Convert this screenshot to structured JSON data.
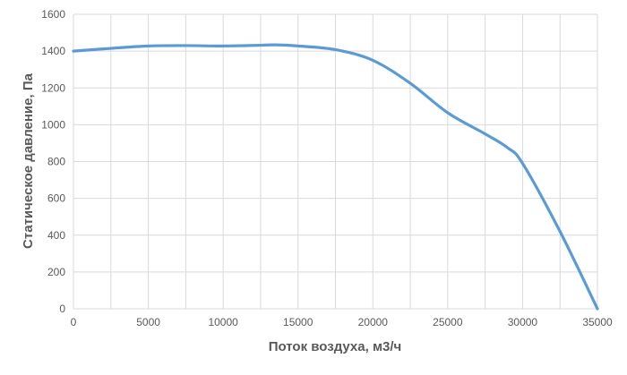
{
  "chart_data": {
    "type": "line",
    "title": "",
    "xlabel": "Поток воздуха, м3/ч",
    "ylabel": "Статическое давление, Па",
    "xlim": [
      0,
      35000
    ],
    "ylim": [
      0,
      1600
    ],
    "xticks": [
      "0",
      "5000",
      "10000",
      "15000",
      "20000",
      "25000",
      "30000",
      "35000"
    ],
    "yticks": [
      "0",
      "200",
      "400",
      "600",
      "800",
      "1000",
      "1200",
      "1400",
      "1600"
    ],
    "grid": true,
    "legend": "none",
    "series": [
      {
        "color": "#5B9BD5",
        "smooth": true,
        "x": [
          0,
          2500,
          5000,
          7500,
          10000,
          12500,
          13500,
          15000,
          17500,
          20000,
          22500,
          25000,
          27500,
          29000,
          30000,
          32500,
          35000
        ],
        "y": [
          1400,
          1415,
          1428,
          1430,
          1428,
          1432,
          1434,
          1428,
          1408,
          1350,
          1225,
          1065,
          950,
          875,
          790,
          420,
          0
        ]
      }
    ]
  }
}
